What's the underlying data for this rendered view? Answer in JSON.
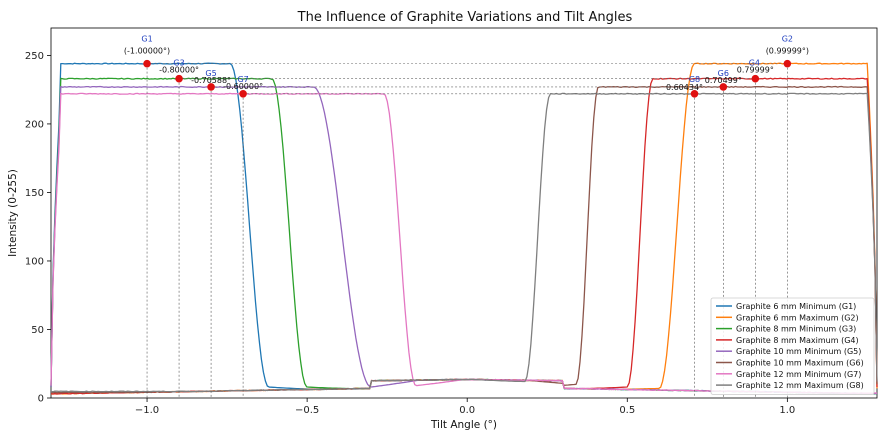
{
  "chart_data": {
    "type": "line",
    "title": "The Influence of Graphite Variations and Tilt Angles",
    "xlabel": "Tilt Angle (°)",
    "ylabel": "Intensity (0-255)",
    "xlim": [
      -1.3,
      1.28
    ],
    "ylim": [
      0,
      270
    ],
    "x_ticks": [
      -1.0,
      -0.5,
      0.0,
      0.5,
      1.0
    ],
    "x_tick_labels": [
      "−1.0",
      "−0.5",
      "0.0",
      "0.5",
      "1.0"
    ],
    "y_ticks": [
      0,
      50,
      100,
      150,
      200,
      250
    ],
    "y_tick_labels": [
      "0",
      "50",
      "100",
      "150",
      "200",
      "250"
    ],
    "legend_position": "bottom-right",
    "series": [
      {
        "name": "Graphite 6 mm Minimum (G1)",
        "color": "#1f77b4",
        "side": "left",
        "plateau": 244,
        "edge_start": -0.74,
        "edge_end": -0.62,
        "low": 8
      },
      {
        "name": "Graphite 6 mm Maximum (G2)",
        "color": "#ff7f0e",
        "side": "right",
        "plateau": 244,
        "edge_start": 0.6,
        "edge_end": 0.71,
        "low": 7
      },
      {
        "name": "Graphite 8 mm Minimum (G3)",
        "color": "#2ca02c",
        "side": "left",
        "plateau": 233,
        "edge_start": -0.61,
        "edge_end": -0.5,
        "low": 8
      },
      {
        "name": "Graphite 8 mm Maximum (G4)",
        "color": "#d62728",
        "side": "right",
        "plateau": 233,
        "edge_start": 0.5,
        "edge_end": 0.58,
        "low": 8
      },
      {
        "name": "Graphite 10 mm Minimum (G5)",
        "color": "#9467bd",
        "side": "left",
        "plateau": 227,
        "edge_start": -0.48,
        "edge_end": -0.3,
        "low": 8
      },
      {
        "name": "Graphite 10 mm Maximum (G6)",
        "color": "#8c564b",
        "side": "right",
        "plateau": 227,
        "edge_start": 0.34,
        "edge_end": 0.41,
        "low": 10
      },
      {
        "name": "Graphite 12 mm Minimum (G7)",
        "color": "#e377c2",
        "side": "left",
        "plateau": 222,
        "edge_start": -0.26,
        "edge_end": -0.16,
        "low": 9
      },
      {
        "name": "Graphite 12 mm Maximum (G8)",
        "color": "#7f7f7f",
        "side": "right",
        "plateau": 222,
        "edge_start": 0.18,
        "edge_end": 0.26,
        "low": 12
      }
    ],
    "annotations": [
      {
        "name": "G1",
        "x": -1.0,
        "y": 244,
        "value": "(-1.00000°)"
      },
      {
        "name": "G2",
        "x": 0.99999,
        "y": 244,
        "value": "(0.99999°)"
      },
      {
        "name": "G3",
        "x": -0.9,
        "y": 233,
        "value": "-0.80000°"
      },
      {
        "name": "G4",
        "x": 0.9,
        "y": 233,
        "value": "0.79999°"
      },
      {
        "name": "G5",
        "x": -0.8,
        "y": 227,
        "value": "-0.70588°"
      },
      {
        "name": "G6",
        "x": 0.8,
        "y": 227,
        "value": "0.70499°"
      },
      {
        "name": "G7",
        "x": -0.7,
        "y": 222,
        "value": "-0.60000°"
      },
      {
        "name": "G8",
        "x": 0.71,
        "y": 222,
        "value": "0.60434°"
      }
    ]
  }
}
